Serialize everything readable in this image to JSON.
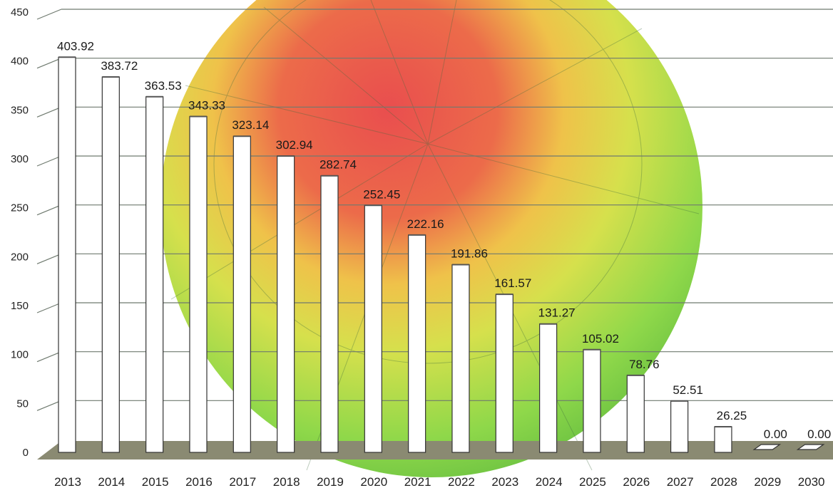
{
  "chart_data": {
    "type": "bar",
    "title": "",
    "xlabel": "",
    "ylabel": "",
    "ylim": [
      0,
      450
    ],
    "yticks": [
      0,
      50,
      100,
      150,
      200,
      250,
      300,
      350,
      400,
      450
    ],
    "grid": true,
    "legend": "none",
    "categories": [
      "2013",
      "2014",
      "2015",
      "2016",
      "2017",
      "2018",
      "2019",
      "2020",
      "2021",
      "2022",
      "2023",
      "2024",
      "2025",
      "2026",
      "2027",
      "2028",
      "2029",
      "2030"
    ],
    "values": [
      403.92,
      383.72,
      363.53,
      343.33,
      323.14,
      302.94,
      282.74,
      252.45,
      222.16,
      191.86,
      161.57,
      131.27,
      105.02,
      78.76,
      52.51,
      26.25,
      0.0,
      0.0
    ],
    "value_labels": [
      "403.92",
      "383.72",
      "363.53",
      "343.33",
      "323.14",
      "302.94",
      "282.74",
      "252.45",
      "222.16",
      "191.86",
      "161.57",
      "131.27",
      "105.02",
      "78.76",
      "52.51",
      "26.25",
      "0.00",
      "0.00"
    ],
    "colors": {
      "bar_fill": "#ffffff",
      "bar_stroke": "#333333",
      "floor": "#8a8a72",
      "grid": "#6f7a6f",
      "globe_hot": "#e84b4b",
      "globe_warm": "#e8d84a",
      "globe_cool": "#7fd64a"
    }
  }
}
